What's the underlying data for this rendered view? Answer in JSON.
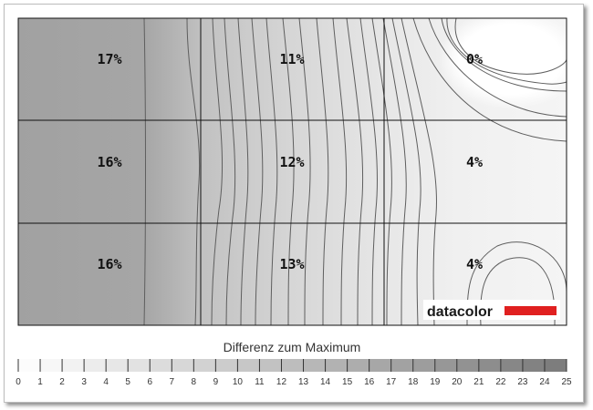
{
  "chart_data": {
    "type": "heatmap",
    "title": "",
    "rows": 3,
    "cols": 3,
    "grid_values": [
      [
        "17%",
        "11%",
        "0%"
      ],
      [
        "16%",
        "12%",
        "4%"
      ],
      [
        "16%",
        "13%",
        "4%"
      ]
    ],
    "legend": {
      "title": "Differenz zum Maximum",
      "ticks": [
        "0",
        "1",
        "2",
        "3",
        "4",
        "5",
        "6",
        "7",
        "8",
        "9",
        "10",
        "11",
        "12",
        "13",
        "14",
        "15",
        "16",
        "17",
        "18",
        "19",
        "20",
        "21",
        "22",
        "23",
        "24",
        "25"
      ],
      "min": 0,
      "max": 25,
      "scale": "white to dark gray"
    },
    "colors": {
      "light": "#ffffff",
      "dark": "#7a7a7a",
      "contour": "#555555",
      "grid": "#111111"
    }
  },
  "brand": {
    "logo_text": "datacolor",
    "accent": "#e02020"
  }
}
